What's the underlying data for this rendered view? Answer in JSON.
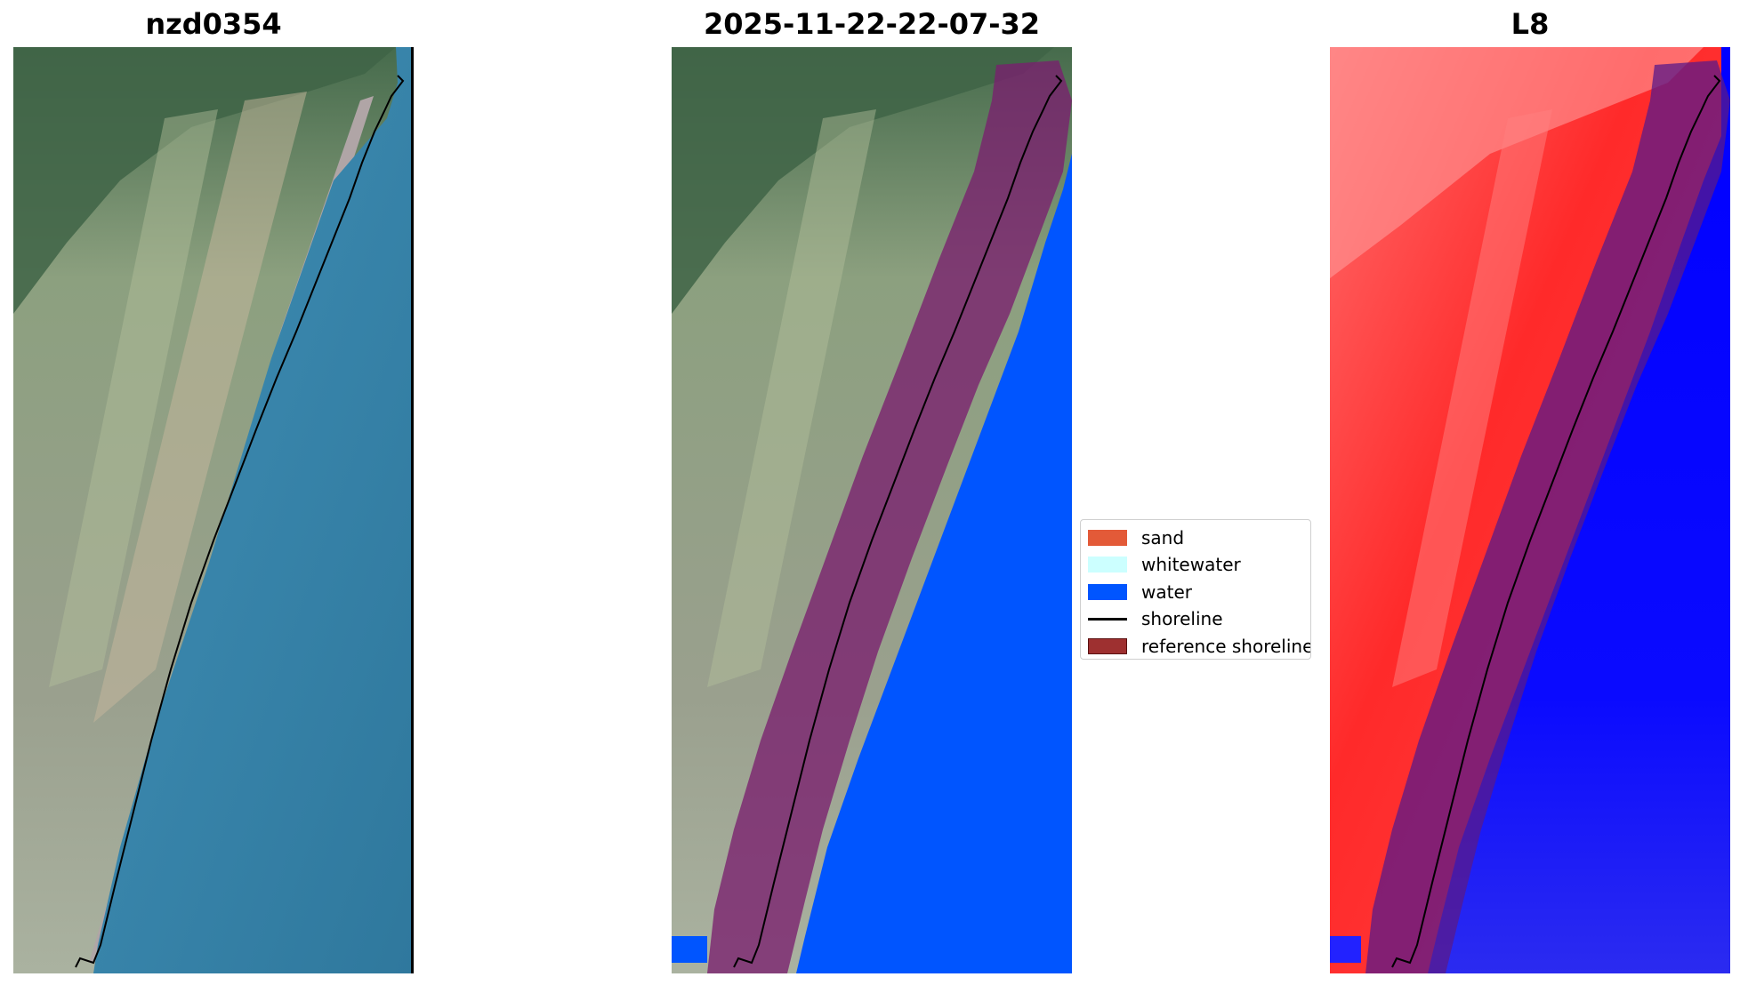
{
  "panels": [
    {
      "title": "nzd0354",
      "type": "rgb-image"
    },
    {
      "title": "2025-11-22-22-07-32",
      "type": "classified-overlay"
    },
    {
      "title": "L8",
      "type": "index-image"
    }
  ],
  "legend": {
    "items": [
      {
        "label": "sand",
        "kind": "patch",
        "color": "#e35a38"
      },
      {
        "label": "whitewater",
        "kind": "patch",
        "color": "#ccffff"
      },
      {
        "label": "water",
        "kind": "patch",
        "color": "#0055ff"
      },
      {
        "label": "shoreline",
        "kind": "line",
        "color": "#000000"
      },
      {
        "label": "reference shoreline buffer",
        "kind": "patch",
        "color": "#9e3030"
      }
    ]
  },
  "colors": {
    "sea_rgb": "#3a83a6",
    "land_rgb": "#8f9a86",
    "vegetation_rgb": "#4b6f52",
    "beach_rgb": "#a99c9a",
    "water_class": "#0055ff",
    "buffer": "#7a1f6e",
    "index_land": "#ff2a2a",
    "index_water": "#0000ff"
  }
}
